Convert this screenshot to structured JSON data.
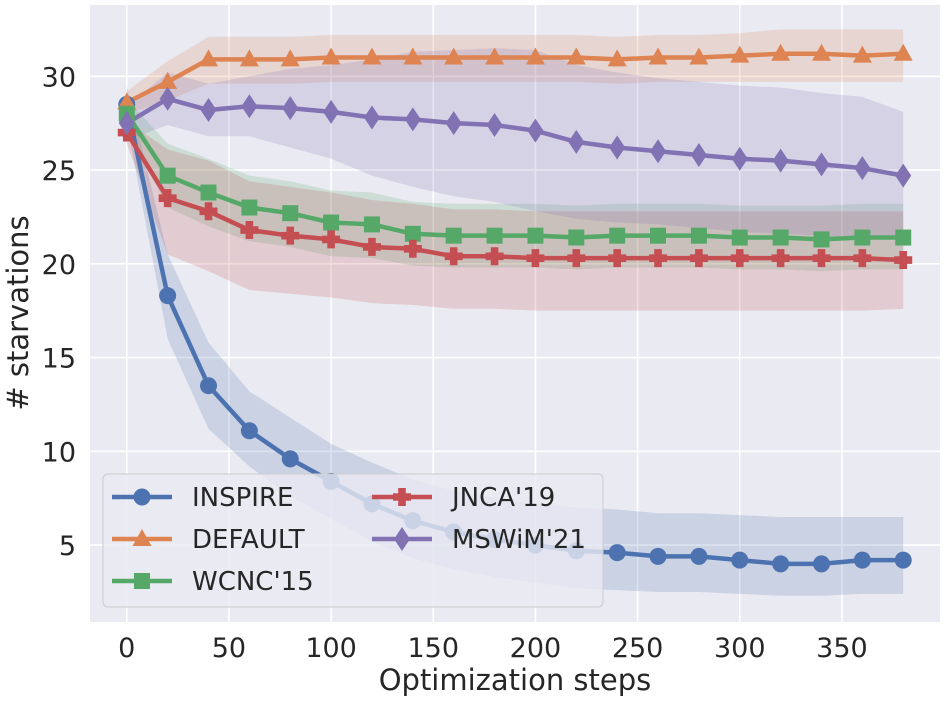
{
  "chart_data": {
    "type": "line",
    "xlabel": "Optimization steps",
    "ylabel": "# starvations",
    "xlim": [
      -18,
      398
    ],
    "ylim": [
      0.9,
      33.8
    ],
    "xticks": [
      0,
      50,
      100,
      150,
      200,
      250,
      300,
      350
    ],
    "yticks": [
      5,
      10,
      15,
      20,
      25,
      30
    ],
    "grid": true,
    "legend_position": "lower-left",
    "x": [
      0,
      20,
      40,
      60,
      80,
      100,
      120,
      140,
      160,
      180,
      200,
      220,
      240,
      260,
      280,
      300,
      320,
      340,
      360,
      380
    ],
    "series": [
      {
        "name": "INSPIRE",
        "color": "#4c72b0",
        "marker": "circle",
        "values": [
          28.5,
          18.3,
          13.5,
          11.1,
          9.6,
          8.4,
          7.2,
          6.3,
          5.7,
          5.3,
          5.0,
          4.7,
          4.6,
          4.4,
          4.4,
          4.2,
          4.0,
          4.0,
          4.2,
          4.2
        ],
        "lower": [
          27.5,
          16.0,
          11.2,
          9.2,
          7.6,
          6.4,
          5.2,
          4.3,
          3.7,
          3.3,
          3.0,
          2.7,
          2.6,
          2.5,
          2.5,
          2.4,
          2.3,
          2.3,
          2.4,
          2.4
        ],
        "upper": [
          29.5,
          20.5,
          15.8,
          13.2,
          11.8,
          10.4,
          9.4,
          8.5,
          7.9,
          7.5,
          7.2,
          7.0,
          6.9,
          6.7,
          6.7,
          6.6,
          6.5,
          6.5,
          6.5,
          6.5
        ]
      },
      {
        "name": "DEFAULT",
        "color": "#dd8452",
        "marker": "triangle",
        "values": [
          28.6,
          29.7,
          30.9,
          30.9,
          30.9,
          31.0,
          31.0,
          31.0,
          31.0,
          31.0,
          31.0,
          31.0,
          30.9,
          31.0,
          31.0,
          31.1,
          31.2,
          31.2,
          31.1,
          31.2
        ],
        "lower": [
          28.0,
          28.7,
          29.6,
          29.6,
          29.6,
          29.7,
          29.7,
          29.7,
          29.7,
          29.7,
          29.7,
          29.7,
          29.6,
          29.7,
          29.7,
          29.7,
          29.7,
          29.7,
          29.7,
          29.7
        ],
        "upper": [
          29.2,
          30.8,
          32.1,
          32.1,
          32.1,
          32.2,
          32.2,
          32.2,
          32.2,
          32.2,
          32.2,
          32.2,
          32.1,
          32.2,
          32.2,
          32.3,
          32.5,
          32.5,
          32.5,
          32.5
        ]
      },
      {
        "name": "WCNC'15",
        "color": "#55a868",
        "marker": "square",
        "values": [
          28.0,
          24.7,
          23.8,
          23.0,
          22.7,
          22.2,
          22.1,
          21.6,
          21.5,
          21.5,
          21.5,
          21.4,
          21.5,
          21.5,
          21.5,
          21.4,
          21.4,
          21.3,
          21.4,
          21.4
        ],
        "lower": [
          27.2,
          23.0,
          22.0,
          21.2,
          20.9,
          20.4,
          20.3,
          19.9,
          19.8,
          19.8,
          19.8,
          19.7,
          19.8,
          19.8,
          19.8,
          19.7,
          19.7,
          19.6,
          19.7,
          19.7
        ],
        "upper": [
          28.8,
          26.4,
          25.6,
          24.7,
          24.4,
          23.9,
          23.8,
          23.3,
          23.2,
          23.2,
          23.2,
          23.1,
          23.2,
          23.2,
          23.2,
          23.1,
          23.1,
          23.1,
          23.2,
          23.2
        ]
      },
      {
        "name": "JNCA'19",
        "color": "#c44e52",
        "marker": "plus",
        "values": [
          27.0,
          23.5,
          22.8,
          21.8,
          21.5,
          21.3,
          20.9,
          20.8,
          20.4,
          20.4,
          20.3,
          20.3,
          20.3,
          20.3,
          20.3,
          20.3,
          20.3,
          20.3,
          20.3,
          20.2
        ],
        "lower": [
          26.4,
          20.5,
          19.6,
          18.6,
          18.4,
          18.2,
          17.9,
          17.8,
          17.6,
          17.6,
          17.5,
          17.5,
          17.5,
          17.5,
          17.5,
          17.5,
          17.5,
          17.5,
          17.5,
          17.6
        ],
        "upper": [
          27.6,
          26.1,
          25.5,
          24.4,
          24.1,
          23.8,
          23.4,
          23.2,
          22.9,
          22.9,
          22.8,
          22.8,
          22.8,
          22.8,
          22.8,
          22.8,
          22.8,
          22.8,
          22.8,
          22.8
        ]
      },
      {
        "name": "MSWiM'21",
        "color": "#8172b3",
        "marker": "diamond",
        "values": [
          27.5,
          28.8,
          28.2,
          28.4,
          28.3,
          28.1,
          27.8,
          27.7,
          27.5,
          27.4,
          27.1,
          26.5,
          26.2,
          26.0,
          25.8,
          25.6,
          25.5,
          25.3,
          25.1,
          24.7
        ],
        "lower": [
          26.6,
          27.4,
          26.8,
          26.8,
          26.2,
          25.6,
          24.7,
          24.1,
          23.6,
          23.3,
          22.8,
          22.4,
          22.2,
          22.1,
          21.9,
          21.7,
          21.6,
          21.5,
          21.3,
          21.3
        ],
        "upper": [
          28.4,
          30.2,
          29.6,
          30.0,
          30.4,
          30.6,
          30.9,
          31.3,
          31.4,
          31.5,
          31.4,
          30.6,
          30.2,
          29.9,
          29.7,
          29.5,
          29.4,
          29.1,
          28.9,
          28.1
        ]
      }
    ],
    "legend_columns": [
      [
        "INSPIRE",
        "DEFAULT",
        "WCNC'15"
      ],
      [
        "JNCA'19",
        "MSWiM'21"
      ]
    ]
  }
}
